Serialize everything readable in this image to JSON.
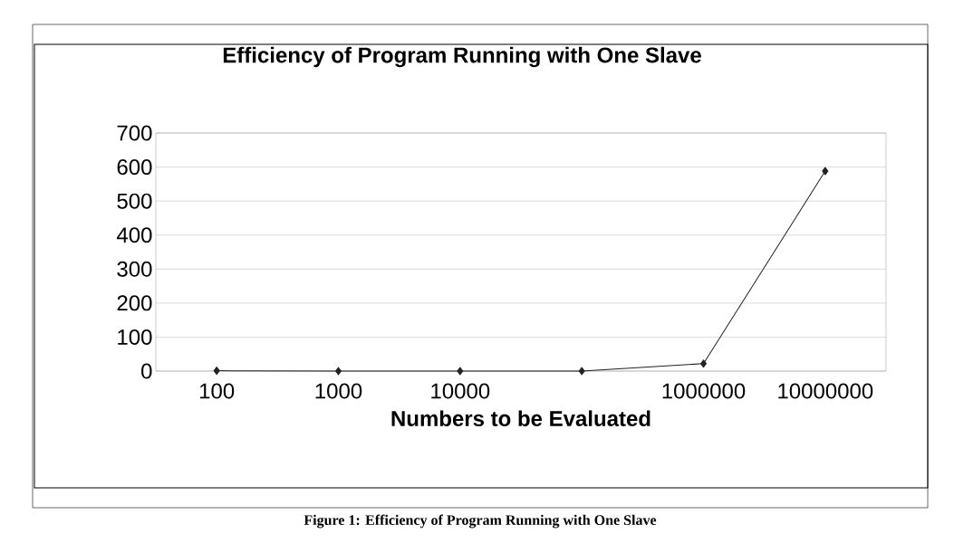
{
  "chart_data": {
    "type": "line",
    "title": "Efficiency of Program Running with One Slave",
    "xlabel": "Numbers to be Evaluated",
    "categories": [
      "100",
      "1000",
      "10000",
      null,
      "1000000",
      "10000000"
    ],
    "series": [
      {
        "color": "#222222",
        "values": [
          1,
          0,
          0,
          0,
          22,
          588
        ]
      }
    ],
    "ylim": [
      0,
      700
    ],
    "yticks": [
      0,
      100,
      200,
      300,
      400,
      500,
      600,
      700
    ],
    "grid": "y",
    "marker": "diamond",
    "line_style": "solid",
    "annotations": [
      "Figure 1:  Efficiency of Program Running with One Slave"
    ]
  }
}
